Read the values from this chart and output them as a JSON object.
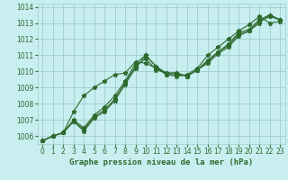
{
  "title": "Graphe pression niveau de la mer (hPa)",
  "bg_color": "#c8eef0",
  "grid_color": "#9ecece",
  "line_color": "#2d6a2d",
  "xlim": [
    -0.5,
    23.5
  ],
  "ylim": [
    1005.5,
    1014.2
  ],
  "yticks": [
    1006,
    1007,
    1008,
    1009,
    1010,
    1011,
    1012,
    1013,
    1014
  ],
  "xticks": [
    0,
    1,
    2,
    3,
    4,
    5,
    6,
    7,
    8,
    9,
    10,
    11,
    12,
    13,
    14,
    15,
    16,
    17,
    18,
    19,
    20,
    21,
    22,
    23
  ],
  "series": [
    [
      1005.7,
      1006.0,
      1006.2,
      1006.9,
      1006.3,
      1007.1,
      1007.5,
      1008.2,
      1009.2,
      1010.2,
      1011.0,
      1010.3,
      1009.8,
      1009.8,
      1009.7,
      1010.1,
      1010.5,
      1011.1,
      1011.5,
      1012.2,
      1012.5,
      1013.0,
      1013.5,
      1013.2
    ],
    [
      1005.7,
      1006.0,
      1006.2,
      1006.9,
      1006.4,
      1007.2,
      1007.6,
      1008.3,
      1009.3,
      1010.3,
      1010.8,
      1010.1,
      1009.9,
      1009.9,
      1009.7,
      1010.1,
      1010.6,
      1011.2,
      1011.6,
      1012.3,
      1012.5,
      1013.1,
      1013.4,
      1013.2
    ],
    [
      1005.7,
      1006.0,
      1006.2,
      1007.0,
      1006.5,
      1007.3,
      1007.8,
      1008.5,
      1009.4,
      1010.5,
      1011.0,
      1010.3,
      1009.9,
      1009.9,
      1009.7,
      1010.1,
      1010.7,
      1011.2,
      1011.7,
      1012.4,
      1012.6,
      1013.2,
      1013.5,
      1013.2
    ],
    [
      1005.7,
      1006.0,
      1006.2,
      1007.5,
      1008.5,
      1009.0,
      1009.4,
      1009.8,
      1009.9,
      1010.6,
      1010.5,
      1010.2,
      1009.8,
      1009.7,
      1009.8,
      1010.2,
      1011.0,
      1011.5,
      1012.0,
      1012.5,
      1012.9,
      1013.4,
      1013.0,
      1013.1
    ]
  ],
  "marker": "*",
  "markersize": 3.5,
  "linewidth": 0.8,
  "title_fontsize": 6.5,
  "tick_fontsize": 5.5
}
